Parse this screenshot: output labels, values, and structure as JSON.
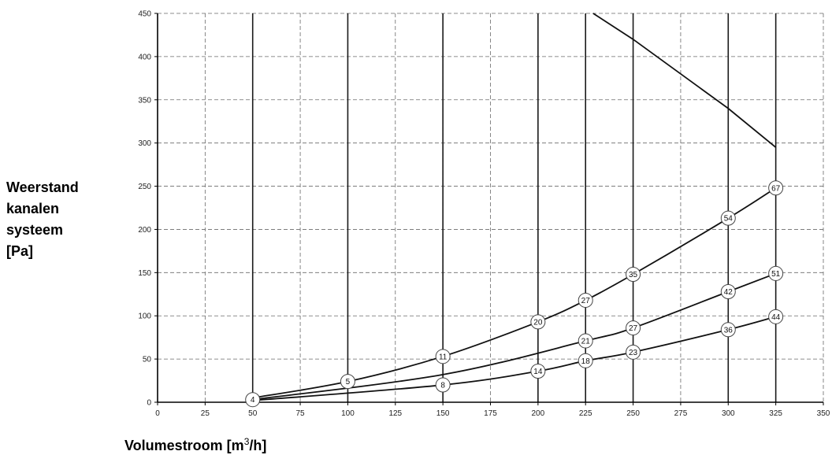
{
  "chart_data": {
    "type": "line",
    "title": "",
    "ylabel_lines": [
      "Weerstand",
      "kanalen",
      "systeem",
      "[Pa]"
    ],
    "xlabel_main": "Volumestroom [m",
    "xlabel_sup": "3",
    "xlabel_tail": "/h]",
    "xlim": [
      0,
      350
    ],
    "ylim": [
      0,
      450
    ],
    "xticks": [
      0,
      25,
      50,
      75,
      100,
      125,
      150,
      175,
      200,
      225,
      250,
      275,
      300,
      325,
      350
    ],
    "yticks": [
      0,
      50,
      100,
      150,
      200,
      250,
      300,
      350,
      400,
      450
    ],
    "grid": true,
    "vertical_lines_x": [
      50,
      100,
      150,
      200,
      225,
      250,
      300,
      325
    ],
    "series": [
      {
        "x": [
          50,
          100,
          150,
          200,
          225,
          250,
          300,
          325
        ],
        "y": [
          5,
          24,
          53,
          93,
          118,
          148,
          213,
          248
        ]
      },
      {
        "x": [
          50,
          150,
          225,
          250,
          300,
          325
        ],
        "y": [
          3,
          32,
          71,
          86,
          128,
          149
        ]
      },
      {
        "x": [
          50,
          150,
          200,
          225,
          250,
          300,
          325
        ],
        "y": [
          2,
          20,
          36,
          48,
          58,
          84,
          99
        ]
      }
    ],
    "limit_line": {
      "x": [
        229,
        250,
        300,
        325
      ],
      "y": [
        450,
        420,
        340,
        295
      ]
    },
    "markers": [
      {
        "label": "4",
        "x": 50,
        "y": 3
      },
      {
        "label": "5",
        "x": 100,
        "y": 24
      },
      {
        "label": "11",
        "x": 150,
        "y": 53
      },
      {
        "label": "20",
        "x": 200,
        "y": 93
      },
      {
        "label": "27",
        "x": 225,
        "y": 118
      },
      {
        "label": "35",
        "x": 250,
        "y": 148
      },
      {
        "label": "54",
        "x": 300,
        "y": 213
      },
      {
        "label": "67",
        "x": 325,
        "y": 248
      },
      {
        "label": "21",
        "x": 225,
        "y": 71
      },
      {
        "label": "27",
        "x": 250,
        "y": 86
      },
      {
        "label": "42",
        "x": 300,
        "y": 128
      },
      {
        "label": "51",
        "x": 325,
        "y": 149
      },
      {
        "label": "8",
        "x": 150,
        "y": 20
      },
      {
        "label": "14",
        "x": 200,
        "y": 36
      },
      {
        "label": "18",
        "x": 225,
        "y": 48
      },
      {
        "label": "23",
        "x": 250,
        "y": 58
      },
      {
        "label": "36",
        "x": 300,
        "y": 84
      },
      {
        "label": "44",
        "x": 325,
        "y": 99
      }
    ]
  }
}
